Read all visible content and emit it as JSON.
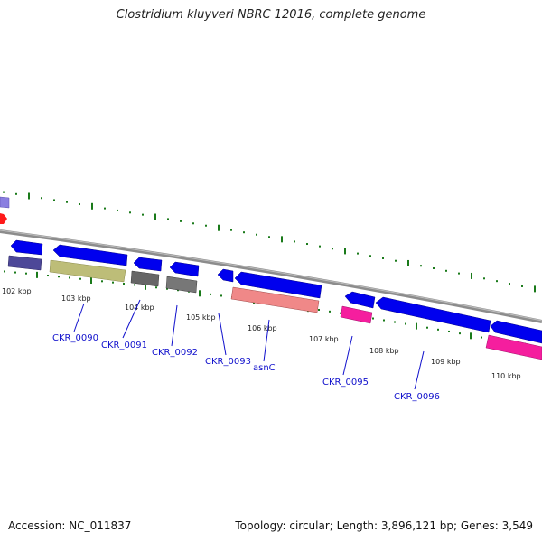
{
  "title": "Clostridium kluyveri NBRC 12016, complete genome",
  "footer": {
    "accession": "Accession: NC_011837",
    "topology": "Topology: circular; Length: 3,896,121 bp; Genes: 3,549"
  },
  "colors": {
    "backbone": "#8c8c8c",
    "cds": "#0000ee",
    "tick": "#1a7a1a",
    "label": "#1010cc"
  },
  "kbp_labels": [
    "102 kbp",
    "103 kbp",
    "104 kbp",
    "105 kbp",
    "106 kbp",
    "107 kbp",
    "108 kbp",
    "109 kbp",
    "110 kbp"
  ],
  "gene_labels": [
    "CKR_0090",
    "CKR_0091",
    "CKR_0092",
    "CKR_0093",
    "asnC",
    "CKR_0095",
    "CKR_0096"
  ]
}
